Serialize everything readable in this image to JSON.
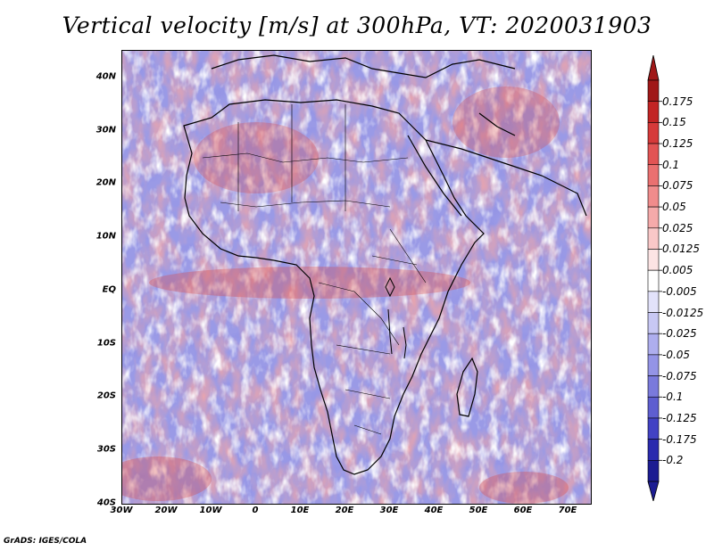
{
  "title": "Vertical velocity [m/s] at 300hPa, VT: 2020031903",
  "credit": "GrADS: IGES/COLA",
  "map": {
    "lat_ticks": [
      "40N",
      "30N",
      "20N",
      "10N",
      "EQ",
      "10S",
      "20S",
      "30S",
      "40S"
    ],
    "lat_values": [
      40,
      30,
      20,
      10,
      0,
      -10,
      -20,
      -30,
      -40
    ],
    "lon_ticks": [
      "30W",
      "20W",
      "10W",
      "0",
      "10E",
      "20E",
      "30E",
      "40E",
      "50E",
      "60E",
      "70E"
    ],
    "lon_values": [
      -30,
      -20,
      -10,
      0,
      10,
      20,
      30,
      40,
      50,
      60,
      70
    ],
    "extent": {
      "lon_min": -30,
      "lon_max": 75,
      "lat_min": -40,
      "lat_max": 45
    }
  },
  "colorbar": {
    "labels": [
      "0.175",
      "0.15",
      "0.125",
      "0.1",
      "0.075",
      "0.05",
      "0.025",
      "0.0125",
      "0.005",
      "-0.005",
      "-0.0125",
      "-0.025",
      "-0.05",
      "-0.075",
      "-0.1",
      "-0.125",
      "-0.175",
      "-0.2"
    ],
    "colors": [
      "#a01818",
      "#c22424",
      "#d63a3a",
      "#e25454",
      "#ea7070",
      "#f08c8c",
      "#f5aaaa",
      "#f9c8c8",
      "#fce4e4",
      "#ffffff",
      "#e2e2fa",
      "#c8c8f4",
      "#aeaeee",
      "#9494e6",
      "#7a7adc",
      "#5e5ed0",
      "#4242c4",
      "#2a2aae",
      "#1c1c92"
    ],
    "top_arrow_color": "#a01818",
    "bottom_arrow_color": "#1c1c92"
  },
  "colors": {
    "background_blue": "#9a9ae6",
    "upward_red": "#e06a6a",
    "coastline": "#000000"
  }
}
